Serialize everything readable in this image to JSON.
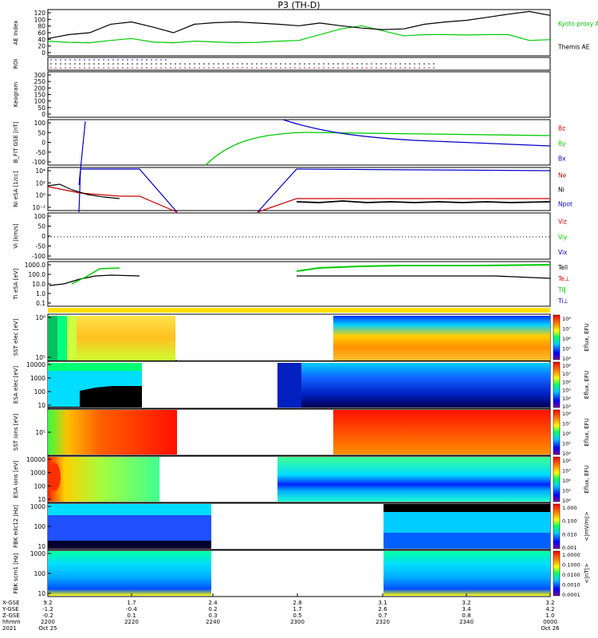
{
  "title": "P3 (TH-D)",
  "colors": {
    "ae_kyoto": "#00cc00",
    "ae_themis": "#000000",
    "red": "#cc0000",
    "green": "#00cc00",
    "blue": "#0000cc"
  },
  "panels": [
    {
      "id": "ae",
      "ylabel": "AE Index",
      "yticks": [
        "0",
        "20",
        "40",
        "60",
        "80",
        "100",
        "120"
      ],
      "right_labels": [
        {
          "text": "Kyoto proxy AE",
          "color": "#00cc00"
        },
        {
          "text": "Themis AE",
          "color": "#000000"
        }
      ]
    },
    {
      "id": "roi",
      "ylabel": "ROI",
      "yticks": [],
      "right_labels": []
    },
    {
      "id": "keogram",
      "ylabel": "Keogram",
      "yticks": [
        "0",
        "50",
        "100",
        "150",
        "200",
        "250",
        "300"
      ],
      "right_labels": []
    },
    {
      "id": "bfit",
      "ylabel": "B_FIT GSE [nT]",
      "yticks": [
        "-100",
        "-50",
        "0",
        "50",
        "100"
      ],
      "right_labels": [
        {
          "text": "Bz",
          "color": "#cc0000"
        },
        {
          "text": "By",
          "color": "#00cc00"
        },
        {
          "text": "Bx",
          "color": "#0000cc"
        }
      ]
    },
    {
      "id": "ni",
      "ylabel": "Ni eSA [1/cc]",
      "yticks": [
        "10⁻²",
        "10⁰",
        "10²",
        "10⁴"
      ],
      "right_labels": [
        {
          "text": "Ne",
          "color": "#cc0000"
        },
        {
          "text": "Ni",
          "color": "#000000"
        },
        {
          "text": "Npot",
          "color": "#0000cc"
        }
      ]
    },
    {
      "id": "vi",
      "ylabel": "Vi [km/s]",
      "yticks": [
        "-100",
        "-50",
        "0",
        "50",
        "100"
      ],
      "right_labels": [
        {
          "text": "Viz",
          "color": "#cc0000"
        },
        {
          "text": "Viy",
          "color": "#00cc00"
        },
        {
          "text": "Vix",
          "color": "#0000cc"
        }
      ]
    },
    {
      "id": "ti",
      "ylabel": "Ti eSA [eV]",
      "yticks": [
        "0.1",
        "1.0",
        "10.0",
        "100.0",
        "1000.0"
      ],
      "right_labels": [
        {
          "text": "Tell",
          "color": "#000000"
        },
        {
          "text": "Te⊥",
          "color": "#cc0000"
        },
        {
          "text": "Ti∥",
          "color": "#00cc00"
        },
        {
          "text": "Ti⊥",
          "color": "#0000cc"
        }
      ]
    },
    {
      "id": "sst_e",
      "ylabel": "SST elec [eV]",
      "yticks": [
        "10⁵",
        "10⁶"
      ],
      "colorbar": [
        "10⁸",
        "10⁷",
        "10⁶",
        "10⁵",
        "10⁴"
      ],
      "cbar_label": "Eflux, EFU"
    },
    {
      "id": "esa_e",
      "ylabel": "ESA elec [eV]",
      "yticks": [
        "10",
        "100",
        "1000",
        "10000"
      ],
      "colorbar": [
        "10⁸",
        "10⁷",
        "10⁶",
        "10⁵",
        "10⁴",
        "10³"
      ],
      "cbar_label": "Eflux, EFU"
    },
    {
      "id": "sst_i",
      "ylabel": "SST ions [eV]",
      "yticks": [
        "10⁵"
      ],
      "colorbar": [
        "10⁸",
        "10⁷",
        "10⁶",
        "10⁵",
        "10⁴"
      ],
      "cbar_label": "Eflux, EFU"
    },
    {
      "id": "esa_i",
      "ylabel": "ESA ions [eV]",
      "yticks": [
        "10",
        "100",
        "1000",
        "10000"
      ],
      "colorbar": [
        "10⁸",
        "10⁷",
        "10⁶",
        "10⁵",
        "10⁴"
      ],
      "cbar_label": "Eflux, EFU"
    },
    {
      "id": "fbk_e",
      "ylabel": "FBK edc12 [Hz]",
      "yticks": [
        "10",
        "100",
        "1000"
      ],
      "colorbar": [
        "1.000",
        "0.100",
        "0.010",
        "0.001"
      ],
      "cbar_label": "<|mV/m|>"
    },
    {
      "id": "fbk_b",
      "ylabel": "FBK scm1 [Hz]",
      "yticks": [
        "10",
        "100",
        "1000"
      ],
      "colorbar": [
        "1.0000",
        "0.1000",
        "0.0100",
        "0.0010",
        "0.0001"
      ],
      "cbar_label": "<|nT|>"
    }
  ],
  "xaxis": {
    "row_labels": [
      "X-GSE",
      "Y-GSE",
      "Z-GSE",
      "hhmm",
      "2021"
    ],
    "columns": [
      {
        "x": "9.2",
        "y": "-1.2",
        "z": "-0.2",
        "t": "2200",
        "d": "Oct 25"
      },
      {
        "x": "1.7",
        "y": "-0.4",
        "z": "0.1",
        "t": "2220",
        "d": ""
      },
      {
        "x": "2.4",
        "y": "0.2",
        "z": "0.3",
        "t": "2240",
        "d": ""
      },
      {
        "x": "2.8",
        "y": "1.7",
        "z": "0.5",
        "t": "2300",
        "d": ""
      },
      {
        "x": "3.1",
        "y": "2.6",
        "z": "0.7",
        "t": "2320",
        "d": ""
      },
      {
        "x": "3.2",
        "y": "3.4",
        "z": "0.8",
        "t": "2340",
        "d": ""
      },
      {
        "x": "3.2",
        "y": "4.2",
        "z": "1.0",
        "t": "0000",
        "d": "Oct 26"
      }
    ]
  },
  "chart_data": [
    {
      "type": "line",
      "title": "AE Index",
      "ylim": [
        0,
        120
      ],
      "x_minutes": [
        0,
        5,
        10,
        15,
        20,
        25,
        30,
        35,
        40,
        45,
        50,
        55,
        60,
        65,
        70,
        75,
        80,
        85,
        90,
        95,
        100,
        105,
        110,
        115,
        120
      ],
      "series": [
        {
          "name": "Kyoto proxy AE",
          "values": [
            38,
            35,
            34,
            40,
            45,
            36,
            34,
            38,
            36,
            34,
            35,
            38,
            40,
            55,
            70,
            78,
            65,
            52,
            55,
            55,
            54,
            55,
            55,
            40,
            42
          ]
        },
        {
          "name": "Themis AE",
          "values": [
            45,
            55,
            60,
            82,
            88,
            75,
            60,
            82,
            86,
            88,
            85,
            82,
            78,
            85,
            78,
            72,
            68,
            70,
            82,
            88,
            92,
            100,
            108,
            115,
            105
          ]
        }
      ]
    },
    {
      "type": "line",
      "title": "B_FIT GSE",
      "ylim": [
        -100,
        100
      ],
      "x_minutes": [
        0,
        10,
        20,
        30,
        40,
        50,
        60,
        70,
        80,
        90,
        100,
        110,
        120
      ],
      "series": [
        {
          "name": "Bz",
          "values": []
        },
        {
          "name": "By",
          "values": [
            null,
            null,
            null,
            null,
            -90,
            0,
            25,
            35,
            40,
            38,
            33,
            30,
            28
          ]
        },
        {
          "name": "Bx",
          "values": [
            null,
            null,
            null,
            null,
            null,
            null,
            100,
            45,
            10,
            -5,
            -15,
            -20,
            -25
          ]
        }
      ]
    },
    {
      "type": "line",
      "title": "Ni eSA",
      "ylim": [
        -2,
        5
      ],
      "x_minutes": [
        0,
        5,
        10,
        15,
        20,
        30,
        40,
        50,
        60,
        70,
        80,
        90,
        100,
        110,
        120
      ],
      "series": [
        {
          "name": "Ne",
          "values": [
            1.5,
            1.0,
            0.5,
            0.3,
            0.3,
            -2,
            null,
            -2,
            -0.5,
            0,
            0,
            0,
            0,
            0,
            0
          ]
        },
        {
          "name": "Ni",
          "values": [
            1.5,
            1.8,
            0.8,
            0.5,
            0.3,
            null,
            null,
            null,
            null,
            -1.2,
            -1.1,
            -1.2,
            -1.1,
            -1.2,
            -1.1
          ]
        },
        {
          "name": "Npot",
          "values": [
            null,
            4.4,
            4.4,
            4.4,
            4.4,
            -2,
            null,
            -2,
            4.4,
            4.3,
            4.3,
            4.3,
            4.4,
            4.3,
            4.0
          ]
        }
      ]
    },
    {
      "type": "line",
      "title": "Ti eSA",
      "ylim": [
        0.1,
        1000
      ],
      "x_minutes": [
        0,
        5,
        10,
        15,
        20,
        25,
        60,
        70,
        80,
        90,
        100,
        110,
        120
      ],
      "series": [
        {
          "name": "Tell",
          "values": [
            10,
            15,
            40,
            100,
            150,
            160,
            null,
            150,
            150,
            160,
            160,
            150,
            110
          ]
        },
        {
          "name": "Ti∥",
          "values": [
            null,
            20,
            80,
            600,
            null,
            null,
            500,
            700,
            800,
            900,
            1000,
            1000,
            1100
          ]
        }
      ]
    }
  ]
}
